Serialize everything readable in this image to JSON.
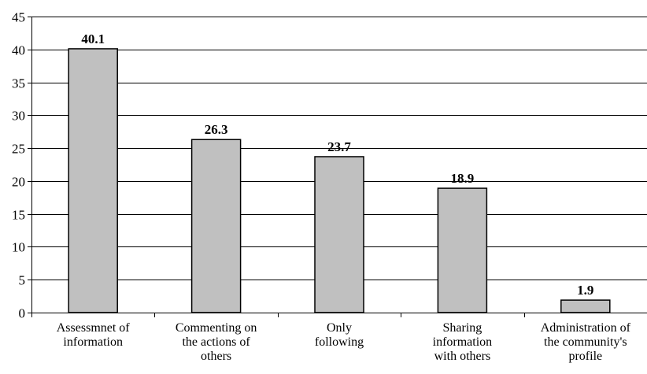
{
  "chart_data": {
    "type": "bar",
    "categories": [
      [
        "Assessmnet of",
        "information"
      ],
      [
        "Commenting on",
        "the actions of",
        "others"
      ],
      [
        "Only",
        "following"
      ],
      [
        "Sharing",
        "information",
        "with others"
      ],
      [
        "Administration of",
        "the community's",
        "profile"
      ]
    ],
    "values": [
      40.1,
      26.3,
      23.7,
      18.9,
      1.9
    ],
    "data_labels": [
      "40.1",
      "26.3",
      "23.7",
      "18.9",
      "1.9"
    ],
    "yticks": [
      "0",
      "5",
      "10",
      "15",
      "20",
      "25",
      "30",
      "35",
      "40",
      "45"
    ],
    "ylim": [
      0,
      45
    ],
    "grid": true,
    "title": "",
    "xlabel": "",
    "ylabel": "",
    "colors": {
      "bar": "#c0c0c0",
      "bar_stroke": "#000000",
      "grid": "#000000"
    }
  }
}
